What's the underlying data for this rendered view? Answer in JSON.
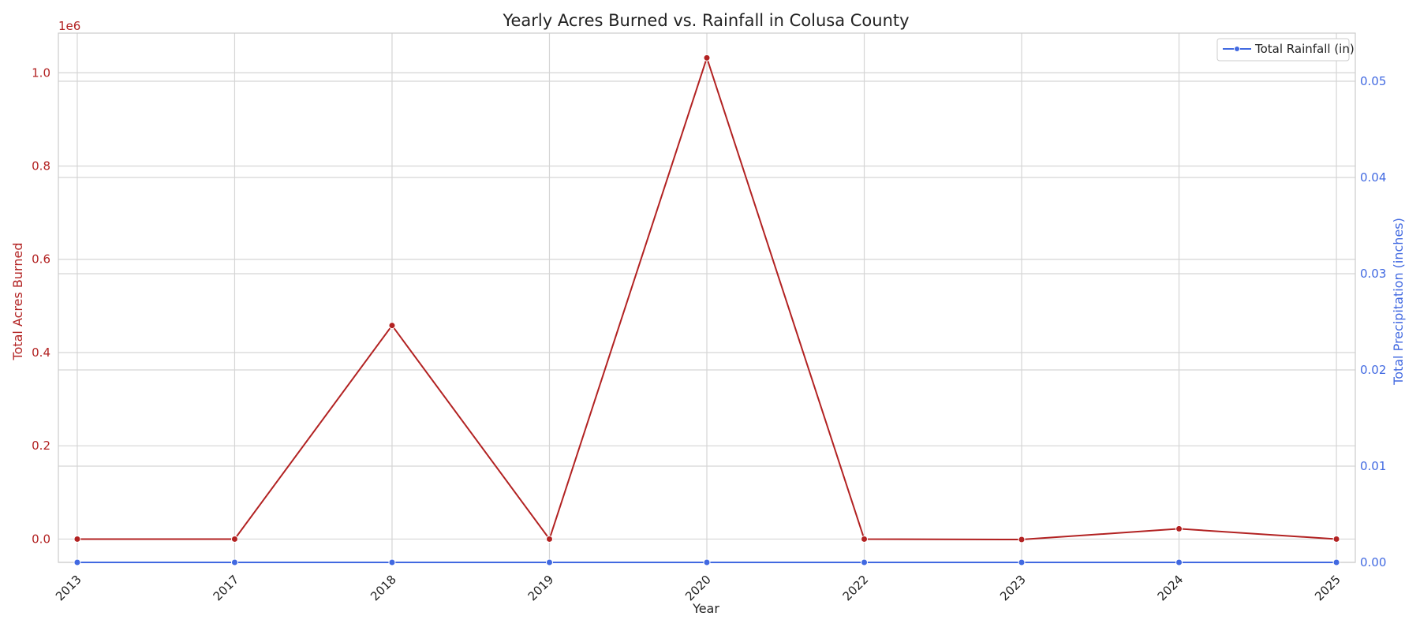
{
  "chart_data": {
    "type": "line",
    "title": "Yearly Acres Burned vs. Rainfall in Colusa County",
    "xlabel": "Year",
    "categories": [
      "2013",
      "2017",
      "2018",
      "2019",
      "2020",
      "2022",
      "2023",
      "2024",
      "2025"
    ],
    "left_axis": {
      "label": "Total Acres Burned",
      "offset_text": "1e6",
      "ylim": [
        -0.05,
        1.085
      ],
      "ticks": [
        0.0,
        0.2,
        0.4,
        0.6,
        0.8,
        1.0
      ],
      "tick_labels": [
        "0.0",
        "0.2",
        "0.4",
        "0.6",
        "0.8",
        "1.0"
      ],
      "color": "#b22222"
    },
    "right_axis": {
      "label": "Total Precipitation (inches)",
      "ylim": [
        0.0,
        0.055
      ],
      "ticks": [
        0.0,
        0.01,
        0.02,
        0.03,
        0.04,
        0.05
      ],
      "tick_labels": [
        "0.00",
        "0.01",
        "0.02",
        "0.03",
        "0.04",
        "0.05"
      ],
      "color": "#4169e1"
    },
    "series": [
      {
        "axis": "left",
        "color": "#b22222",
        "values": [
          0.0,
          0.0,
          0.458,
          0.0,
          1.032,
          0.0,
          -0.001,
          0.022,
          0.0
        ]
      },
      {
        "axis": "right",
        "name": "Total Rainfall (in)",
        "color": "#4169e1",
        "values": [
          0.0,
          0.0,
          0.0,
          0.0,
          0.0,
          0.0,
          0.0,
          0.0,
          0.0
        ]
      }
    ],
    "legend": {
      "placement": "top-right",
      "entries": [
        "Total Rainfall (in)"
      ]
    },
    "grid": true
  }
}
